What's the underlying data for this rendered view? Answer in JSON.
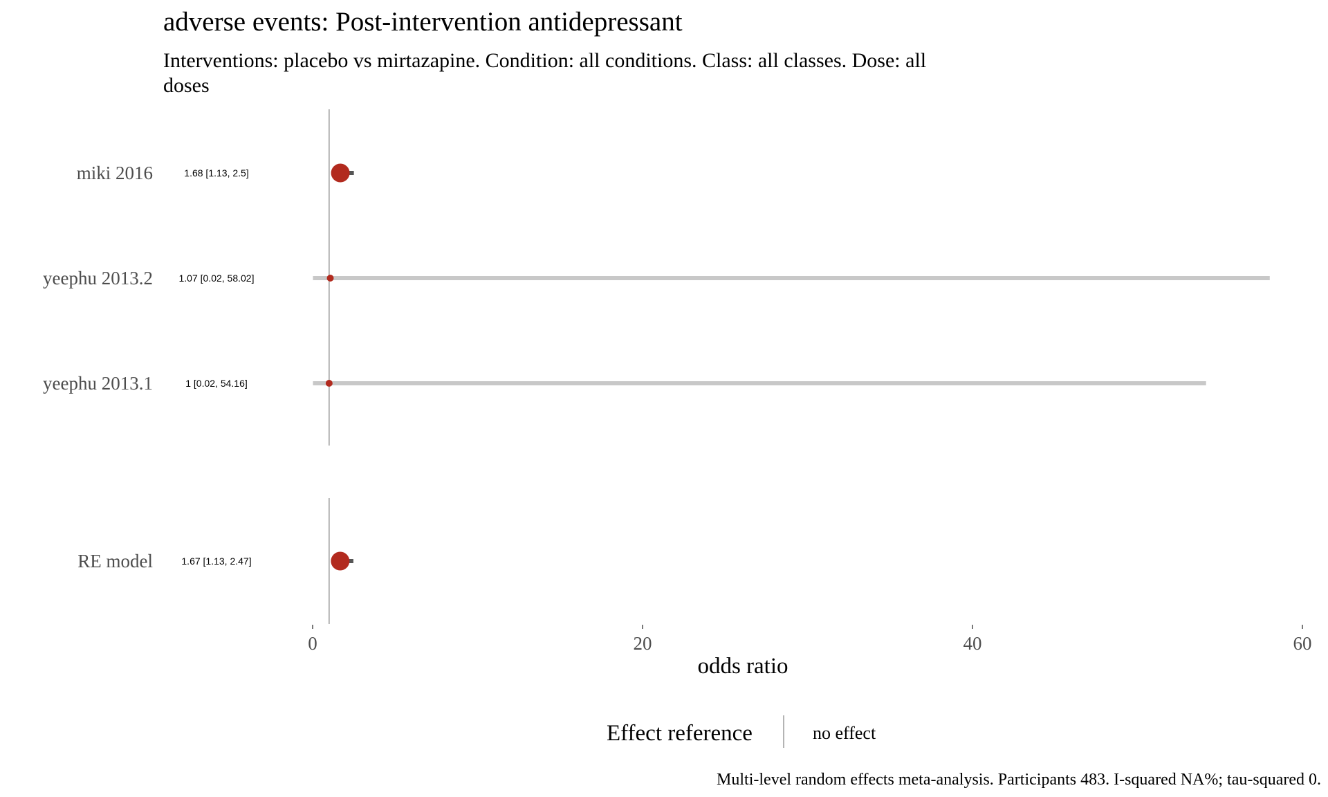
{
  "chart_data": {
    "type": "forest",
    "title": "adverse events: Post-intervention antidepressant",
    "subtitle_lines": [
      "Interventions: placebo vs mirtazapine. Condition: all conditions. Class: all classes. Dose: all",
      "doses"
    ],
    "xlabel": "odds ratio",
    "xlim": [
      0,
      60
    ],
    "x_ticks": [
      "0",
      "20",
      "40",
      "60"
    ],
    "reference_line": 1,
    "studies": [
      {
        "label": "miki 2016",
        "estimate": 1.68,
        "lower": 1.13,
        "upper": 2.5,
        "ci_text": "1.68 [1.13, 2.5]",
        "weight": "large"
      },
      {
        "label": "yeephu 2013.2",
        "estimate": 1.07,
        "lower": 0.02,
        "upper": 58.02,
        "ci_text": "1.07 [0.02, 58.02]",
        "weight": "small"
      },
      {
        "label": "yeephu 2013.1",
        "estimate": 1,
        "lower": 0.02,
        "upper": 54.16,
        "ci_text": "1 [0.02, 54.16]",
        "weight": "small"
      }
    ],
    "pooled": {
      "label": "RE model",
      "estimate": 1.67,
      "lower": 1.13,
      "upper": 2.47,
      "ci_text": "1.67 [1.13, 2.47]"
    },
    "legend": {
      "title": "Effect reference",
      "label": "no effect",
      "placement": "bottom"
    },
    "caption": "Multi-level random effects meta-analysis. Participants 483. I-squared NA%; tau-squared 0.",
    "colors": {
      "point": "#b22a1e",
      "ci_line": "#c8c8c8",
      "ci_line_narrow": "#555555",
      "reference_line": "#9a9a9a",
      "label_text": "#4d4d4d"
    }
  }
}
